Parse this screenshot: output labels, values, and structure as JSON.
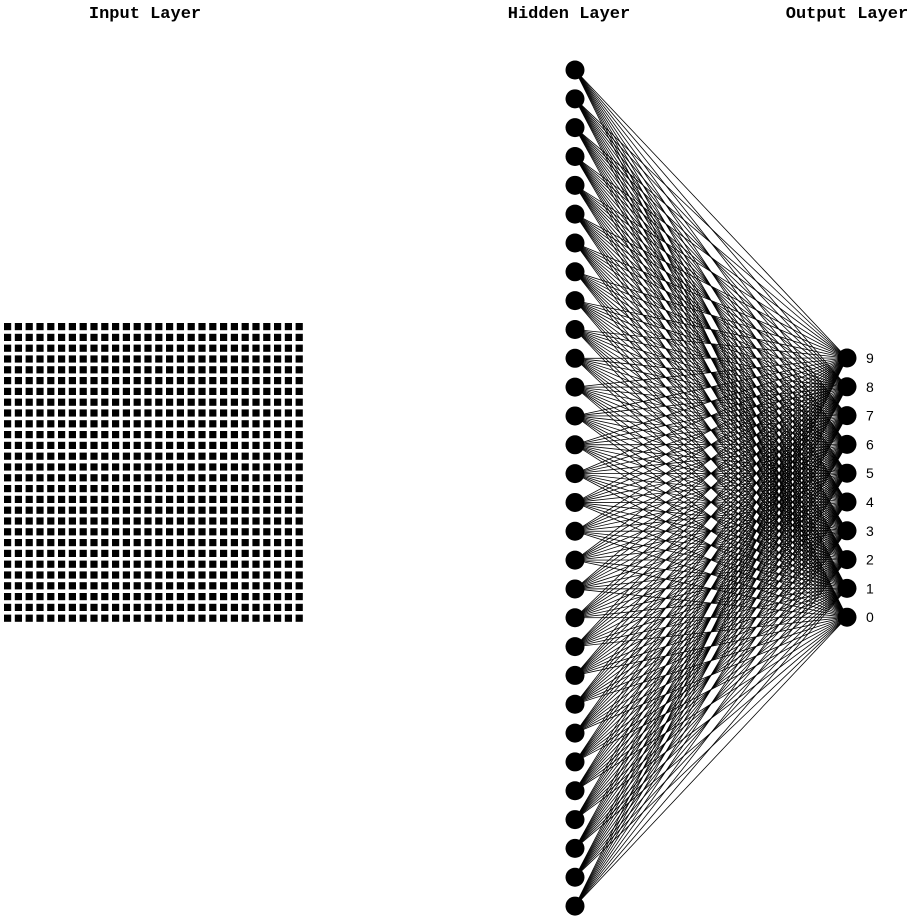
{
  "titles": {
    "input": "Input Layer",
    "hidden": "Hidden Layer",
    "output": "Output Layer"
  },
  "network": {
    "input_grid": {
      "rows": 28,
      "cols": 28
    },
    "hidden_nodes": 30,
    "output_labels": [
      "9",
      "8",
      "7",
      "6",
      "5",
      "4",
      "3",
      "2",
      "1",
      "0"
    ],
    "connections": "hidden-to-output fully connected"
  },
  "colors": {
    "ink": "#000000",
    "background": "#ffffff"
  }
}
